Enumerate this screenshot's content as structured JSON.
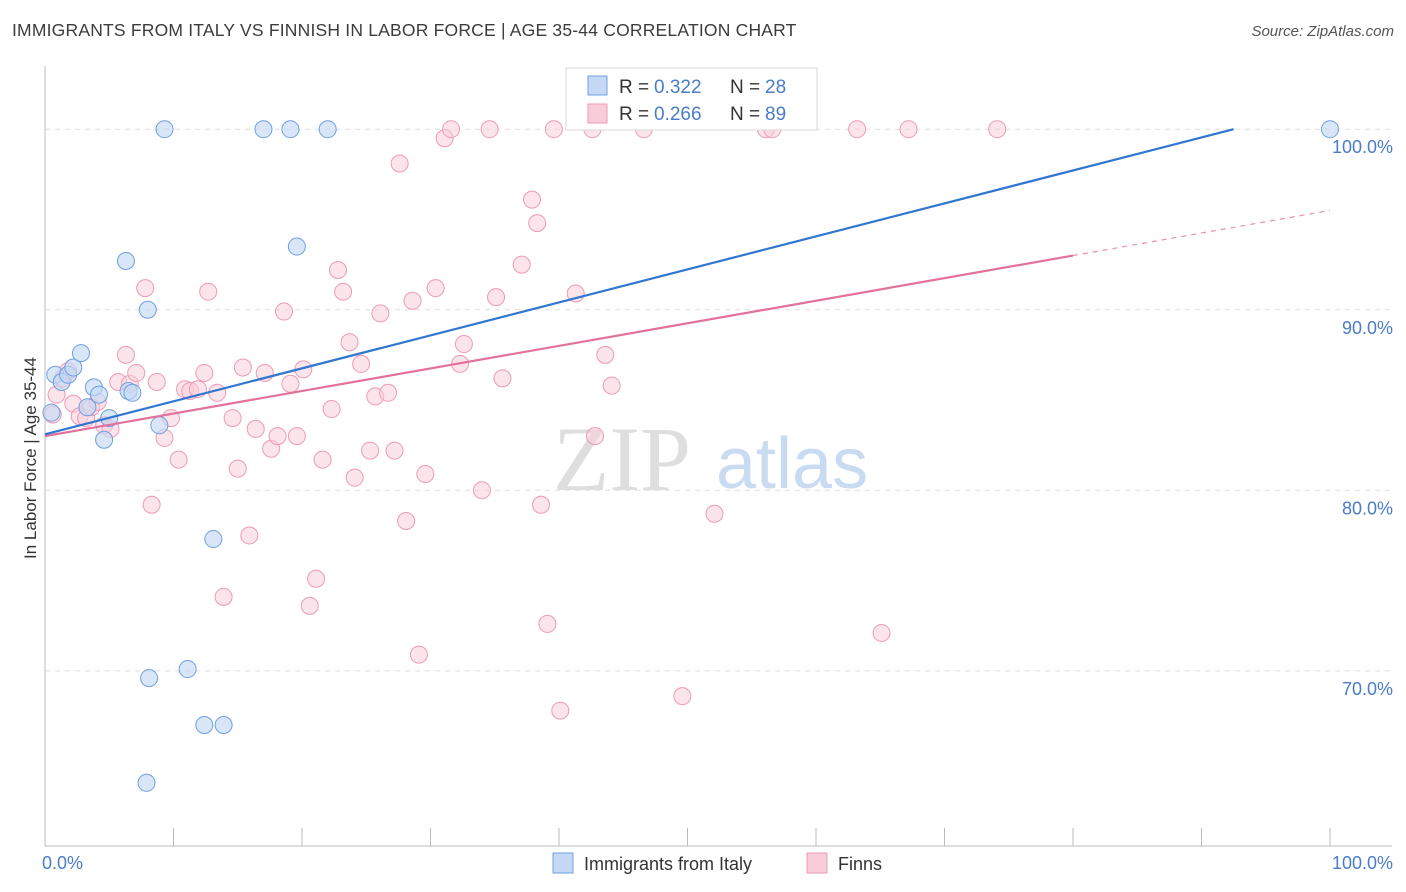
{
  "title": "IMMIGRANTS FROM ITALY VS FINNISH IN LABOR FORCE | AGE 35-44 CORRELATION CHART",
  "source": "Source: ZipAtlas.com",
  "watermark": {
    "zip": "ZIP",
    "atlas": "atlas"
  },
  "colors": {
    "italy_fill": "#c5d8f5",
    "italy_stroke": "#6f9fe0",
    "italy_line": "#3176d0",
    "finns_fill": "#f8cdd9",
    "finns_stroke": "#ef9ab5",
    "finns_line": "#e2719c",
    "grid": "#dddddd",
    "tick_text": "#4a7cc9"
  },
  "legend": {
    "rows": [
      {
        "r_label": "R =",
        "r_value": "0.322",
        "n_label": "N =",
        "n_value": "28"
      },
      {
        "r_label": "R =",
        "r_value": "0.266",
        "n_label": "N =",
        "n_value": "89"
      }
    ]
  },
  "chart_data": {
    "type": "scatter",
    "xlabel": "",
    "ylabel": "In Labor Force | Age 35-44",
    "xlim": [
      0,
      100
    ],
    "ylim": [
      60.3,
      103.5
    ],
    "x_tick_labels": [
      "0.0%",
      "100.0%"
    ],
    "y_ticks": [
      70,
      80,
      90,
      100
    ],
    "y_tick_labels": [
      "70.0%",
      "80.0%",
      "90.0%",
      "100.0%"
    ],
    "grid": true,
    "legend_position": "top-center",
    "series": [
      {
        "name": "Immigrants from Italy",
        "r": 0.322,
        "n": 28,
        "trend": {
          "x0": 0,
          "y0": 83.1,
          "x1": 92.5,
          "y1": 100.0,
          "dashed_to": null
        },
        "points": [
          [
            0.5,
            84.3
          ],
          [
            0.8,
            86.4
          ],
          [
            1.3,
            86.0
          ],
          [
            1.8,
            86.4
          ],
          [
            2.2,
            86.8
          ],
          [
            2.8,
            87.6
          ],
          [
            3.3,
            84.6
          ],
          [
            3.8,
            85.7
          ],
          [
            4.2,
            85.3
          ],
          [
            4.6,
            82.8
          ],
          [
            5.0,
            84.0
          ],
          [
            6.3,
            92.7
          ],
          [
            6.5,
            85.5
          ],
          [
            6.8,
            85.4
          ],
          [
            7.9,
            63.8
          ],
          [
            8.1,
            69.6
          ],
          [
            8.9,
            83.6
          ],
          [
            9.3,
            100.0
          ],
          [
            8.0,
            90.0
          ],
          [
            11.1,
            70.1
          ],
          [
            12.4,
            67.0
          ],
          [
            13.1,
            77.3
          ],
          [
            13.9,
            67.0
          ],
          [
            17.0,
            100.0
          ],
          [
            19.1,
            100.0
          ],
          [
            19.6,
            93.5
          ],
          [
            22.0,
            100.0
          ],
          [
            100.0,
            100.0
          ]
        ]
      },
      {
        "name": "Finns",
        "r": 0.266,
        "n": 89,
        "trend": {
          "x0": 0,
          "y0": 83.0,
          "x1": 80.0,
          "y1": 93.0,
          "dashed_to": {
            "x": 100,
            "y": 95.5
          }
        },
        "points": [
          [
            0.6,
            84.2
          ],
          [
            0.9,
            85.3
          ],
          [
            1.4,
            86.2
          ],
          [
            1.8,
            86.6
          ],
          [
            2.2,
            84.8
          ],
          [
            2.7,
            84.1
          ],
          [
            3.2,
            84.0
          ],
          [
            3.6,
            84.6
          ],
          [
            4.1,
            84.9
          ],
          [
            4.6,
            83.6
          ],
          [
            5.1,
            83.4
          ],
          [
            5.7,
            86.0
          ],
          [
            6.3,
            87.5
          ],
          [
            6.6,
            85.9
          ],
          [
            7.1,
            86.5
          ],
          [
            7.8,
            91.2
          ],
          [
            8.3,
            79.2
          ],
          [
            8.7,
            86.0
          ],
          [
            9.3,
            82.9
          ],
          [
            9.8,
            84.0
          ],
          [
            10.4,
            81.7
          ],
          [
            10.9,
            85.6
          ],
          [
            11.3,
            85.5
          ],
          [
            11.9,
            85.6
          ],
          [
            12.4,
            86.5
          ],
          [
            12.7,
            91.0
          ],
          [
            13.4,
            85.4
          ],
          [
            13.9,
            74.1
          ],
          [
            14.6,
            84.0
          ],
          [
            15.0,
            81.2
          ],
          [
            15.4,
            86.8
          ],
          [
            15.9,
            77.5
          ],
          [
            16.4,
            83.4
          ],
          [
            17.1,
            86.5
          ],
          [
            17.6,
            82.3
          ],
          [
            18.1,
            83.0
          ],
          [
            18.6,
            89.9
          ],
          [
            19.1,
            85.9
          ],
          [
            19.6,
            83.0
          ],
          [
            20.1,
            86.7
          ],
          [
            20.6,
            73.6
          ],
          [
            21.1,
            75.1
          ],
          [
            21.6,
            81.7
          ],
          [
            22.3,
            84.5
          ],
          [
            22.8,
            92.2
          ],
          [
            23.2,
            91.0
          ],
          [
            23.7,
            88.2
          ],
          [
            24.1,
            80.7
          ],
          [
            24.6,
            87.0
          ],
          [
            25.3,
            82.2
          ],
          [
            25.7,
            85.2
          ],
          [
            26.1,
            89.8
          ],
          [
            26.7,
            85.4
          ],
          [
            27.2,
            82.2
          ],
          [
            27.6,
            98.1
          ],
          [
            28.1,
            78.3
          ],
          [
            28.6,
            90.5
          ],
          [
            29.1,
            70.9
          ],
          [
            29.6,
            80.9
          ],
          [
            30.4,
            91.2
          ],
          [
            31.1,
            99.5
          ],
          [
            31.6,
            100.0
          ],
          [
            32.3,
            87.0
          ],
          [
            32.6,
            88.1
          ],
          [
            34.0,
            80.0
          ],
          [
            34.6,
            100.0
          ],
          [
            35.1,
            90.7
          ],
          [
            35.6,
            86.2
          ],
          [
            37.1,
            92.5
          ],
          [
            37.9,
            96.1
          ],
          [
            38.3,
            94.8
          ],
          [
            38.6,
            79.2
          ],
          [
            39.1,
            72.6
          ],
          [
            39.6,
            100.0
          ],
          [
            40.1,
            67.8
          ],
          [
            41.3,
            90.9
          ],
          [
            42.6,
            100.0
          ],
          [
            42.8,
            83.0
          ],
          [
            43.6,
            87.5
          ],
          [
            44.1,
            85.8
          ],
          [
            46.6,
            100.0
          ],
          [
            49.6,
            68.6
          ],
          [
            52.1,
            78.7
          ],
          [
            56.1,
            100.0
          ],
          [
            56.6,
            100.0
          ],
          [
            63.2,
            100.0
          ],
          [
            65.1,
            72.1
          ],
          [
            67.2,
            100.0
          ],
          [
            74.1,
            100.0
          ]
        ]
      }
    ]
  },
  "bottom_legend": [
    "Immigrants from Italy",
    "Finns"
  ]
}
